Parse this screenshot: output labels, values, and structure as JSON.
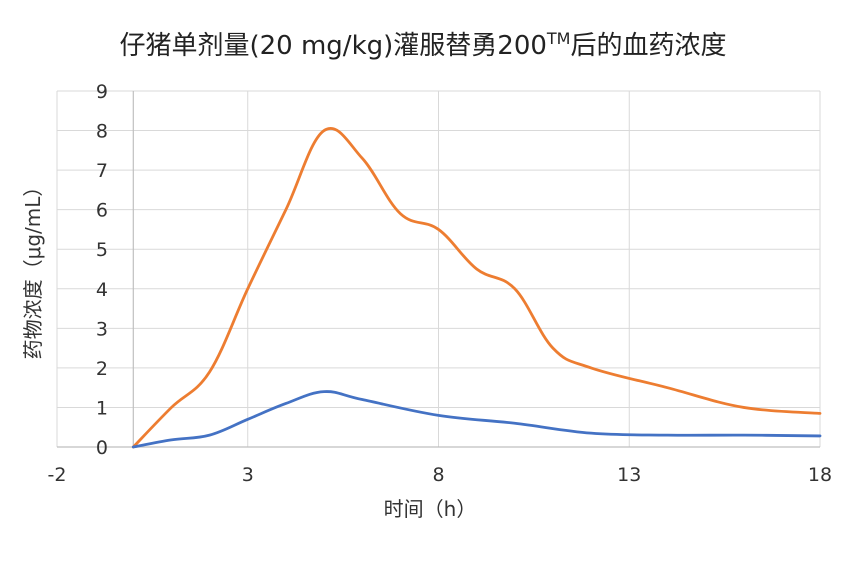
{
  "chart_data": {
    "type": "line",
    "title": "仔猪单剂量(20 mg/kg)灌服替勇200",
    "title_sup": "TM",
    "title_tail": "后的血药浓度",
    "xlabel": "时间（h）",
    "ylabel": "药物浓度（μg/mL）",
    "xlim": [
      -2,
      18
    ],
    "ylim": [
      0,
      9
    ],
    "x_ticks": [
      -2,
      3,
      8,
      13,
      18
    ],
    "y_ticks": [
      0,
      1,
      2,
      3,
      4,
      5,
      6,
      7,
      8,
      9
    ],
    "grid": true,
    "series": [
      {
        "name": "orange",
        "color": "#ED7D31",
        "x": [
          0,
          1,
          2,
          3,
          4,
          5,
          6,
          7,
          8,
          9,
          10,
          11,
          12,
          14,
          16,
          18
        ],
        "y": [
          0,
          1.0,
          1.9,
          4.0,
          6.0,
          8.0,
          7.3,
          5.9,
          5.5,
          4.5,
          4.0,
          2.5,
          2.0,
          1.5,
          1.0,
          0.85
        ]
      },
      {
        "name": "blue",
        "color": "#4472C4",
        "x": [
          0,
          1,
          2,
          3,
          4,
          5,
          6,
          8,
          10,
          12,
          14,
          16,
          18
        ],
        "y": [
          0,
          0.18,
          0.3,
          0.7,
          1.1,
          1.4,
          1.2,
          0.8,
          0.6,
          0.35,
          0.3,
          0.3,
          0.28
        ]
      }
    ]
  }
}
